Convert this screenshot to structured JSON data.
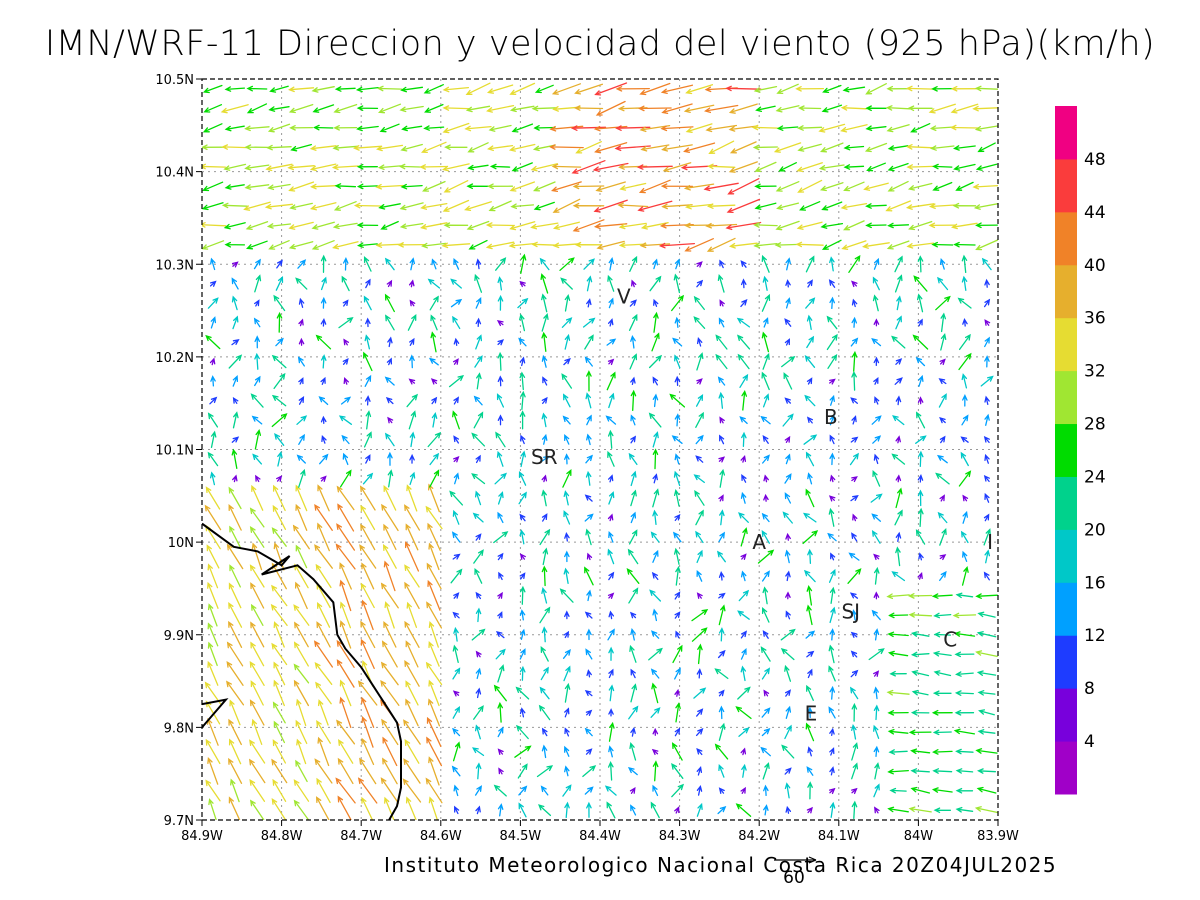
{
  "chart_data": {
    "type": "vector_field",
    "title": "IMN/WRF-11 Direccion y velocidad del viento (925 hPa)(km/h)",
    "x_ticks": [
      "84.9W",
      "84.8W",
      "84.7W",
      "84.6W",
      "84.5W",
      "84.4W",
      "84.3W",
      "84.2W",
      "84.1W",
      "84W",
      "83.9W"
    ],
    "y_ticks": [
      "10.5N",
      "10.4N",
      "10.3N",
      "10.2N",
      "10.1N",
      "10N",
      "9.9N",
      "9.8N",
      "9.7N"
    ],
    "xlim": [
      -84.9,
      -83.9
    ],
    "ylim": [
      9.7,
      10.5
    ],
    "grid": true,
    "colorbar": {
      "levels": [
        0,
        4,
        8,
        12,
        16,
        20,
        24,
        28,
        32,
        36,
        40,
        44,
        48,
        52
      ],
      "labels": [
        "4",
        "8",
        "12",
        "16",
        "20",
        "24",
        "28",
        "32",
        "36",
        "40",
        "44",
        "48"
      ],
      "colors": [
        "#a000c8",
        "#7800dc",
        "#1e3cff",
        "#00a0ff",
        "#00c8c8",
        "#00d28c",
        "#00dc00",
        "#a0e632",
        "#e6dc32",
        "#e6af2d",
        "#f08228",
        "#fa3c3c",
        "#f00082"
      ]
    },
    "stations": [
      {
        "label": "V",
        "lon": -84.37,
        "lat": 10.265
      },
      {
        "label": "B",
        "lon": -84.11,
        "lat": 10.135
      },
      {
        "label": "SR",
        "lon": -84.47,
        "lat": 10.092
      },
      {
        "label": "A",
        "lon": -84.2,
        "lat": 10.0
      },
      {
        "label": "I",
        "lon": -83.91,
        "lat": 10.0
      },
      {
        "label": "SJ",
        "lon": -84.085,
        "lat": 9.925
      },
      {
        "label": "C",
        "lon": -83.96,
        "lat": 9.895
      },
      {
        "label": "E",
        "lon": -84.135,
        "lat": 9.815
      }
    ],
    "reference_vector": {
      "label": "60",
      "speed": 60
    },
    "coastline": [
      [
        -84.9,
        10.02
      ],
      [
        -84.86,
        9.995
      ],
      [
        -84.83,
        9.99
      ],
      [
        -84.8,
        9.975
      ],
      [
        -84.79,
        9.985
      ],
      [
        -84.825,
        9.965
      ],
      [
        -84.78,
        9.975
      ],
      [
        -84.76,
        9.96
      ],
      [
        -84.735,
        9.935
      ],
      [
        -84.73,
        9.9
      ],
      [
        -84.72,
        9.885
      ],
      [
        -84.7,
        9.865
      ],
      [
        -84.685,
        9.845
      ],
      [
        -84.67,
        9.825
      ],
      [
        -84.655,
        9.805
      ],
      [
        -84.65,
        9.785
      ],
      [
        -84.65,
        9.765
      ],
      [
        -84.65,
        9.735
      ],
      [
        -84.655,
        9.715
      ],
      [
        -84.665,
        9.7
      ]
    ],
    "coast_fragment": [
      [
        -84.9,
        9.825
      ],
      [
        -84.87,
        9.83
      ],
      [
        -84.9,
        9.8
      ]
    ]
  },
  "footer": "Instituto Meteorologico Nacional Costa Rica 20Z04JUL2025"
}
